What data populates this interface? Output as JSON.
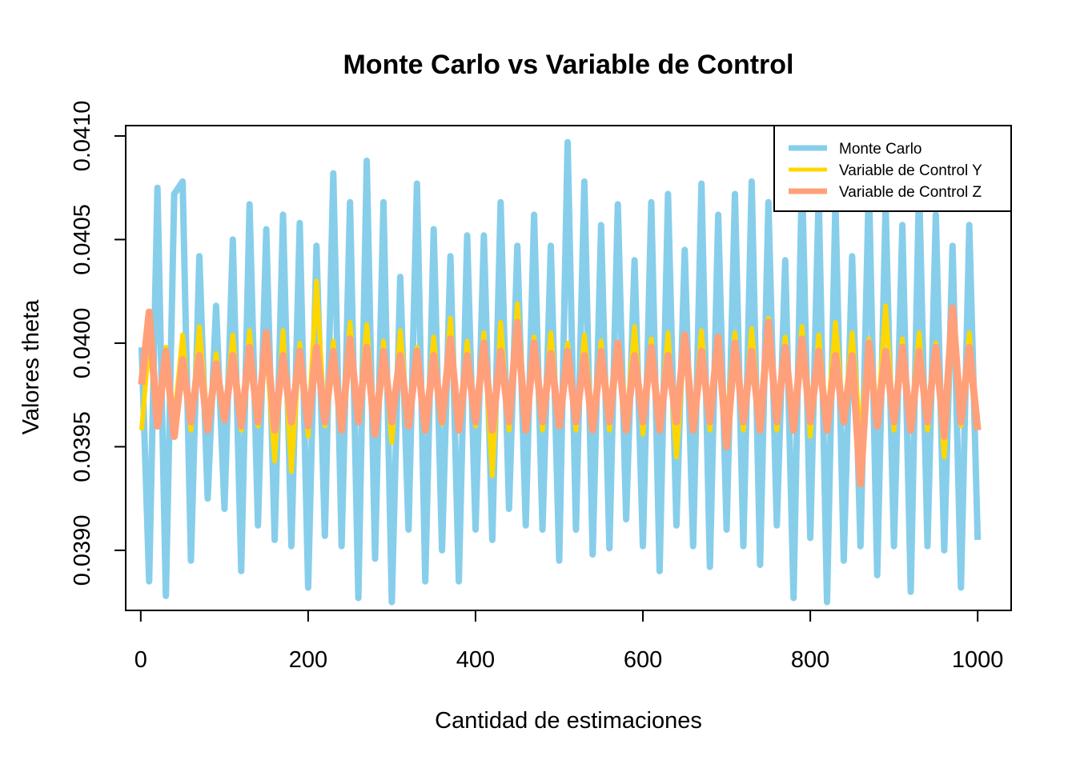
{
  "chart_data": {
    "type": "line",
    "title": "Monte Carlo vs Variable de Control",
    "xlabel": "Cantidad de estimaciones",
    "ylabel": "Valores theta",
    "xlim": [
      -18,
      1040
    ],
    "ylim": [
      0.03871,
      0.04105
    ],
    "xticks": [
      0,
      200,
      400,
      600,
      800,
      1000
    ],
    "xtick_labels": [
      "0",
      "200",
      "400",
      "600",
      "800",
      "1000"
    ],
    "yticks": [
      0.039,
      0.0395,
      0.04,
      0.0405,
      0.041
    ],
    "ytick_labels": [
      "0.0390",
      "0.0395",
      "0.0400",
      "0.0405",
      "0.0410"
    ],
    "legend_position": "top-right",
    "grid": false,
    "n_points": 1000,
    "series": [
      {
        "name": "Monte Carlo",
        "color": "#87CEEB",
        "mean": 0.03978,
        "range": [
          0.03874,
          0.04097
        ],
        "sample_x": [
          1,
          10,
          20,
          30,
          40,
          50,
          60,
          70,
          80,
          90,
          100,
          110,
          120,
          130,
          140,
          150,
          160,
          170,
          180,
          190,
          200,
          210,
          220,
          230,
          240,
          250,
          260,
          270,
          280,
          290,
          300,
          310,
          320,
          330,
          340,
          350,
          360,
          370,
          380,
          390,
          400,
          410,
          420,
          430,
          440,
          450,
          460,
          470,
          480,
          490,
          500,
          510,
          520,
          530,
          540,
          550,
          560,
          570,
          580,
          590,
          600,
          610,
          620,
          630,
          640,
          650,
          660,
          670,
          680,
          690,
          700,
          710,
          720,
          730,
          740,
          750,
          760,
          770,
          780,
          790,
          800,
          810,
          820,
          830,
          840,
          850,
          860,
          870,
          880,
          890,
          900,
          910,
          920,
          930,
          940,
          950,
          960,
          970,
          980,
          990,
          1000
        ],
        "sample_y": [
          0.03998,
          0.03885,
          0.04075,
          0.03878,
          0.04072,
          0.04078,
          0.03895,
          0.04042,
          0.03925,
          0.04018,
          0.0392,
          0.0405,
          0.0389,
          0.04067,
          0.03912,
          0.04055,
          0.03905,
          0.04062,
          0.03902,
          0.04058,
          0.03882,
          0.04047,
          0.03907,
          0.04082,
          0.03902,
          0.04068,
          0.03877,
          0.04088,
          0.03896,
          0.04068,
          0.03875,
          0.04032,
          0.0391,
          0.04077,
          0.03885,
          0.04055,
          0.039,
          0.04042,
          0.03885,
          0.04052,
          0.0391,
          0.04052,
          0.03905,
          0.04068,
          0.0392,
          0.04047,
          0.03912,
          0.04062,
          0.0391,
          0.04047,
          0.03895,
          0.04097,
          0.0391,
          0.04078,
          0.03898,
          0.04057,
          0.03901,
          0.04067,
          0.03915,
          0.0404,
          0.03902,
          0.04068,
          0.0389,
          0.04072,
          0.03912,
          0.04045,
          0.03902,
          0.04077,
          0.03892,
          0.04062,
          0.0391,
          0.04072,
          0.03902,
          0.04078,
          0.03893,
          0.04068,
          0.03912,
          0.0404,
          0.03877,
          0.04082,
          0.03906,
          0.04072,
          0.03875,
          0.04068,
          0.03895,
          0.04042,
          0.03902,
          0.04078,
          0.03888,
          0.04067,
          0.03902,
          0.04057,
          0.0388,
          0.04077,
          0.03902,
          0.04062,
          0.039,
          0.04047,
          0.03882,
          0.04057,
          0.03905
        ]
      },
      {
        "name": "Variable de Control Y",
        "color": "#FFD700",
        "mean": 0.03978,
        "range": [
          0.03935,
          0.0403
        ],
        "sample_x": [
          1,
          10,
          20,
          30,
          40,
          50,
          60,
          70,
          80,
          90,
          100,
          110,
          120,
          130,
          140,
          150,
          160,
          170,
          180,
          190,
          200,
          210,
          220,
          230,
          240,
          250,
          260,
          270,
          280,
          290,
          300,
          310,
          320,
          330,
          340,
          350,
          360,
          370,
          380,
          390,
          400,
          410,
          420,
          430,
          440,
          450,
          460,
          470,
          480,
          490,
          500,
          510,
          520,
          530,
          540,
          550,
          560,
          570,
          580,
          590,
          600,
          610,
          620,
          630,
          640,
          650,
          660,
          670,
          680,
          690,
          700,
          710,
          720,
          730,
          740,
          750,
          760,
          770,
          780,
          790,
          800,
          810,
          820,
          830,
          840,
          850,
          860,
          870,
          880,
          890,
          900,
          910,
          920,
          930,
          940,
          950,
          960,
          970,
          980,
          990,
          1000
        ],
        "sample_y": [
          0.03958,
          0.04001,
          0.0396,
          0.03998,
          0.03962,
          0.04004,
          0.03958,
          0.04008,
          0.03961,
          0.03995,
          0.03963,
          0.04004,
          0.03958,
          0.04006,
          0.0396,
          0.03998,
          0.03943,
          0.04006,
          0.03938,
          0.04,
          0.03955,
          0.0403,
          0.0396,
          0.04001,
          0.03958,
          0.0401,
          0.03962,
          0.04009,
          0.03958,
          0.04001,
          0.03952,
          0.04006,
          0.0396,
          0.03998,
          0.03958,
          0.04003,
          0.03961,
          0.04012,
          0.03958,
          0.04001,
          0.0396,
          0.04005,
          0.03936,
          0.0401,
          0.03958,
          0.04019,
          0.03962,
          0.04003,
          0.03958,
          0.04005,
          0.03961,
          0.04,
          0.03958,
          0.04004,
          0.03962,
          0.04001,
          0.03958,
          0.03998,
          0.0396,
          0.04008,
          0.03956,
          0.04002,
          0.03958,
          0.04005,
          0.03945,
          0.04003,
          0.0396,
          0.04006,
          0.03958,
          0.04001,
          0.03962,
          0.04005,
          0.03958,
          0.04007,
          0.0396,
          0.04012,
          0.03958,
          0.04003,
          0.03962,
          0.04008,
          0.03955,
          0.04004,
          0.0396,
          0.0401,
          0.03962,
          0.04005,
          0.03955,
          0.04002,
          0.0396,
          0.04018,
          0.03958,
          0.04002,
          0.03962,
          0.04005,
          0.03958,
          0.04,
          0.03945,
          0.04008,
          0.0396,
          0.04005,
          0.03962
        ]
      },
      {
        "name": "Variable de Control Z",
        "color": "#FFA07A",
        "mean": 0.03978,
        "range": [
          0.03932,
          0.04017
        ],
        "sample_x": [
          1,
          10,
          20,
          30,
          40,
          50,
          60,
          70,
          80,
          90,
          100,
          110,
          120,
          130,
          140,
          150,
          160,
          170,
          180,
          190,
          200,
          210,
          220,
          230,
          240,
          250,
          260,
          270,
          280,
          290,
          300,
          310,
          320,
          330,
          340,
          350,
          360,
          370,
          380,
          390,
          400,
          410,
          420,
          430,
          440,
          450,
          460,
          470,
          480,
          490,
          500,
          510,
          520,
          530,
          540,
          550,
          560,
          570,
          580,
          590,
          600,
          610,
          620,
          630,
          640,
          650,
          660,
          670,
          680,
          690,
          700,
          710,
          720,
          730,
          740,
          750,
          760,
          770,
          780,
          790,
          800,
          810,
          820,
          830,
          840,
          850,
          860,
          870,
          880,
          890,
          900,
          910,
          920,
          930,
          940,
          950,
          960,
          970,
          980,
          990,
          1000
        ],
        "sample_y": [
          0.0398,
          0.04015,
          0.0396,
          0.03996,
          0.03955,
          0.03992,
          0.03962,
          0.03994,
          0.03958,
          0.0399,
          0.03963,
          0.03994,
          0.0396,
          0.03998,
          0.03962,
          0.04005,
          0.03958,
          0.03994,
          0.03962,
          0.03996,
          0.0396,
          0.03998,
          0.03962,
          0.03996,
          0.03958,
          0.04002,
          0.03962,
          0.03998,
          0.03956,
          0.03996,
          0.03962,
          0.03994,
          0.0396,
          0.03996,
          0.03958,
          0.03994,
          0.03962,
          0.04002,
          0.03958,
          0.03994,
          0.03962,
          0.04,
          0.03958,
          0.03996,
          0.03962,
          0.0401,
          0.03958,
          0.04,
          0.03962,
          0.03995,
          0.0396,
          0.03996,
          0.03962,
          0.03994,
          0.03958,
          0.03996,
          0.03962,
          0.04,
          0.03958,
          0.03994,
          0.03962,
          0.03998,
          0.03958,
          0.03994,
          0.03962,
          0.04004,
          0.03958,
          0.03996,
          0.03962,
          0.04003,
          0.0395,
          0.04,
          0.03962,
          0.03996,
          0.03958,
          0.0401,
          0.03962,
          0.03998,
          0.03958,
          0.04002,
          0.03962,
          0.03996,
          0.03958,
          0.03994,
          0.03962,
          0.03994,
          0.03932,
          0.04,
          0.0396,
          0.03996,
          0.03962,
          0.03998,
          0.03958,
          0.03996,
          0.03962,
          0.03998,
          0.03955,
          0.04017,
          0.03962,
          0.03998,
          0.03958
        ]
      }
    ]
  }
}
